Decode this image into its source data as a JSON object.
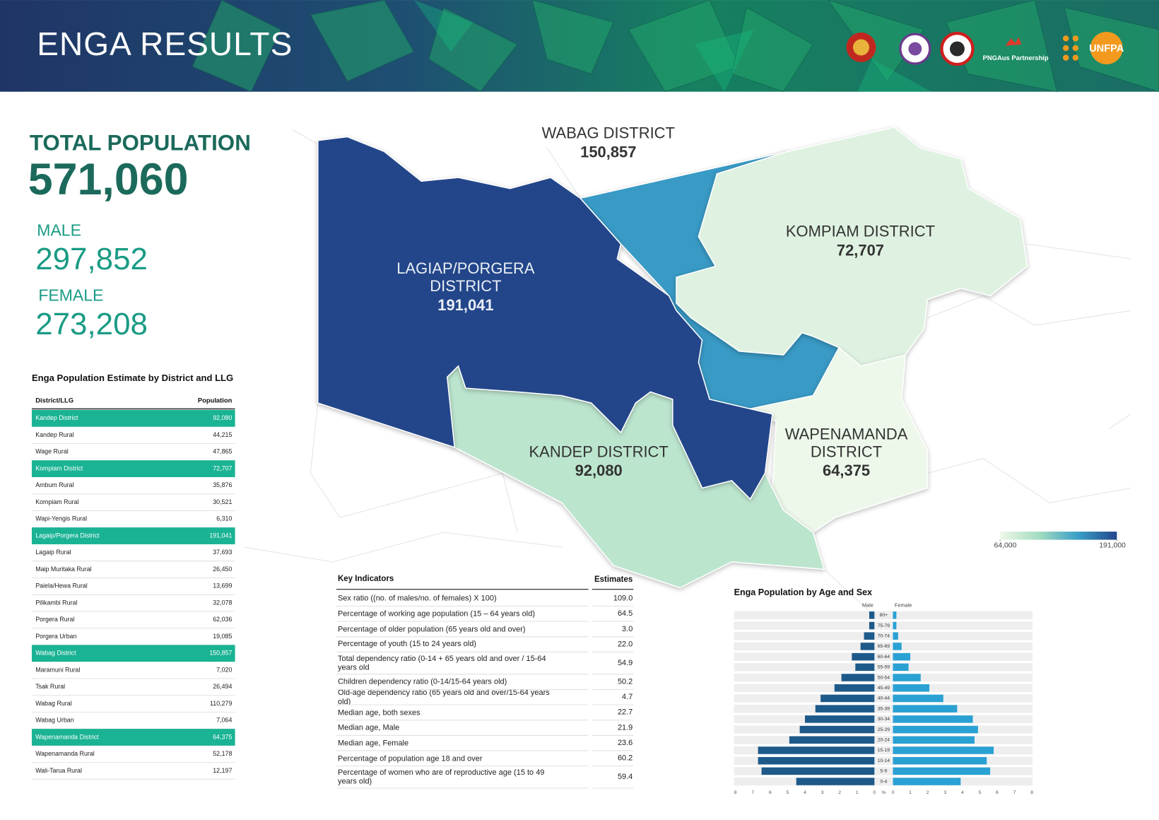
{
  "header": {
    "title": "ENGA RESULTS",
    "logos": [
      "PNGAus Partnership",
      "UNFPA"
    ]
  },
  "summary": {
    "total_label": "TOTAL POPULATION",
    "total": "571,060",
    "male_label": "MALE",
    "male": "297,852",
    "female_label": "FEMALE",
    "female": "273,208"
  },
  "district_table": {
    "title": "Enga Population Estimate by District and LLG",
    "columns": [
      "District/LLG",
      "Population"
    ],
    "rows": [
      {
        "name": "Kandep District",
        "population": "92,080",
        "district": true
      },
      {
        "name": "Kandep Rural",
        "population": "44,215",
        "district": false
      },
      {
        "name": "Wage Rural",
        "population": "47,865",
        "district": false
      },
      {
        "name": "Kompiam District",
        "population": "72,707",
        "district": true
      },
      {
        "name": "Ambum Rural",
        "population": "35,876",
        "district": false
      },
      {
        "name": "Kompiam Rural",
        "population": "30,521",
        "district": false
      },
      {
        "name": "Wapi-Yengis Rural",
        "population": "6,310",
        "district": false
      },
      {
        "name": "Lagaip/Porgera District",
        "population": "191,041",
        "district": true
      },
      {
        "name": "Lagaip Rural",
        "population": "37,693",
        "district": false
      },
      {
        "name": "Maip Muritaka Rural",
        "population": "26,450",
        "district": false
      },
      {
        "name": "Paiela/Hewa Rural",
        "population": "13,699",
        "district": false
      },
      {
        "name": "Pilikambi Rural",
        "population": "32,078",
        "district": false
      },
      {
        "name": "Porgera Rural",
        "population": "62,036",
        "district": false
      },
      {
        "name": "Porgera Urban",
        "population": "19,085",
        "district": false
      },
      {
        "name": "Wabag District",
        "population": "150,857",
        "district": true
      },
      {
        "name": "Maramuni Rural",
        "population": "7,020",
        "district": false
      },
      {
        "name": "Tsak Rural",
        "population": "26,494",
        "district": false
      },
      {
        "name": "Wabag Rural",
        "population": "110,279",
        "district": false
      },
      {
        "name": "Wabag Urban",
        "population": "7,064",
        "district": false
      },
      {
        "name": "Wapenamanda District",
        "population": "64,375",
        "district": true
      },
      {
        "name": "Wapenamanda Rural",
        "population": "52,178",
        "district": false
      },
      {
        "name": "Wali-Tarua Rural",
        "population": "12,197",
        "district": false
      }
    ]
  },
  "map": {
    "type": "choropleth",
    "categories": [
      "WABAG DISTRICT",
      "KOMPIAM DISTRICT",
      "WAPENAMANDA DISTRICT",
      "KANDEP DISTRICT",
      "LAGIAP/PORGERA DISTRICT"
    ],
    "values": [
      150857,
      72707,
      64375,
      92080,
      191041
    ],
    "value_labels": [
      "150,857",
      "72,707",
      "64,375",
      "92,080",
      "191,041"
    ],
    "colorscale": {
      "lim": [
        64000,
        191000
      ],
      "ticks": [
        {
          "value": 64000,
          "label": "64,000"
        },
        {
          "value": 191000,
          "label": "191,000"
        }
      ],
      "colors": [
        "#eef8ea",
        "#a3dcc0",
        "#3a9fc8",
        "#23468a"
      ]
    }
  },
  "indicators": {
    "columns": [
      "Key Indicators",
      "Estimates"
    ],
    "rows": [
      [
        "Sex ratio ((no. of males/no. of females) X 100)",
        "109.0"
      ],
      [
        "Percentage of working age population (15 – 64 years old)",
        "64.5"
      ],
      [
        "Percentage of older population (65 years old and over)",
        "3.0"
      ],
      [
        "Percentage of youth (15 to 24 years old)",
        "22.0"
      ],
      [
        "Total dependency ratio (0-14 + 65 years old and over / 15-64 years old",
        "54.9"
      ],
      [
        "Children dependency ratio (0-14/15-64 years old)",
        "50.2"
      ],
      [
        "Old-age dependency ratio (65 years old and over/15-64 years old)",
        "4.7"
      ],
      [
        "Median age, both sexes",
        "22.7"
      ],
      [
        "Median age, Male",
        "21.9"
      ],
      [
        "Median age, Female",
        "23.6"
      ],
      [
        "Percentage of population age 18 and over",
        "60.2"
      ],
      [
        "Percentage of women who are of reproductive age (15 to 49 years old)",
        "59.4"
      ]
    ]
  },
  "chart_data": {
    "type": "pyramid",
    "title": "Enga Population by Age and Sex",
    "categories": [
      "0-4",
      "5-9",
      "10-14",
      "15-19",
      "20-24",
      "25-29",
      "30-34",
      "35-39",
      "40-44",
      "45-49",
      "50-54",
      "55-59",
      "60-64",
      "65-69",
      "70-74",
      "75-79",
      "80+"
    ],
    "series": [
      {
        "name": "Male",
        "color": "#1d5a8a",
        "values": [
          4.5,
          6.5,
          6.7,
          6.7,
          4.9,
          4.3,
          4.0,
          3.4,
          3.1,
          2.3,
          1.9,
          1.1,
          1.3,
          0.8,
          0.6,
          0.3,
          0.3
        ]
      },
      {
        "name": "Female",
        "color": "#2aa1d3",
        "values": [
          3.9,
          5.6,
          5.4,
          5.8,
          4.7,
          4.9,
          4.6,
          3.7,
          2.9,
          2.1,
          1.6,
          0.9,
          1.0,
          0.5,
          0.3,
          0.2,
          0.2
        ]
      }
    ],
    "xlim": [
      0,
      8
    ],
    "xticks": [
      0,
      1,
      2,
      3,
      4,
      5,
      6,
      7,
      8
    ],
    "x_unit": "%",
    "grid": true
  }
}
